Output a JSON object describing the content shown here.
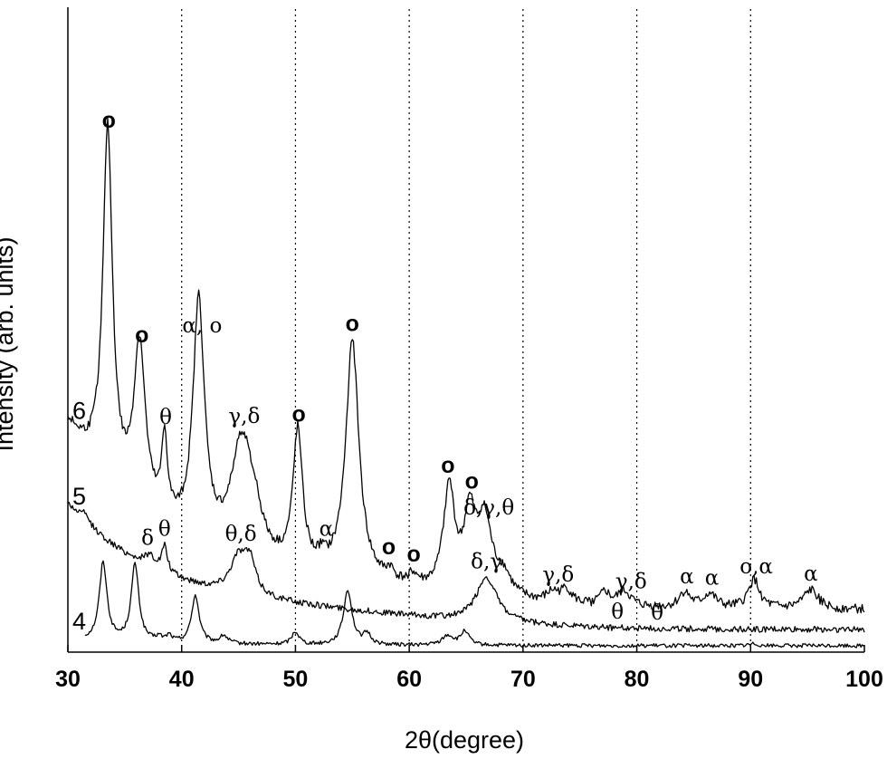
{
  "chart_data": {
    "type": "line",
    "xlabel": "2θ(degree)",
    "ylabel": "Intensity (arb. units)",
    "xlim": [
      30,
      100
    ],
    "x_ticks": [
      "30",
      "40",
      "50",
      "60",
      "70",
      "80",
      "90",
      "100"
    ],
    "vertical_grid": [
      40,
      50,
      60,
      70,
      80,
      90
    ],
    "y_ticks_shown": false,
    "series": [
      {
        "name": "4",
        "base": 1.0,
        "noise": 0.05,
        "slope": [
          1.0,
          0.0
        ],
        "peaks": [
          [
            33.1,
            12.2,
            0.4
          ],
          [
            35.9,
            12.0,
            0.4
          ],
          [
            38.0,
            0.7,
            0.3
          ],
          [
            38.9,
            1.0,
            0.3
          ],
          [
            41.2,
            7.4,
            0.4
          ],
          [
            43.7,
            1.2,
            0.4
          ],
          [
            50.0,
            2.0,
            0.4
          ],
          [
            54.6,
            8.5,
            0.45
          ],
          [
            56.3,
            1.6,
            0.4
          ],
          [
            63.4,
            1.5,
            0.6
          ],
          [
            64.9,
            2.2,
            0.4
          ],
          [
            90.3,
            0.3,
            0.5
          ]
        ]
      },
      {
        "name": "5",
        "base": 3.5,
        "noise": 0.08,
        "slope": [
          19.0,
          2.0
        ],
        "peaks": [
          [
            31.5,
            1.2,
            0.5
          ],
          [
            37.2,
            1.8,
            0.6
          ],
          [
            38.5,
            4.0,
            0.3
          ],
          [
            45.0,
            5.6,
            0.9
          ],
          [
            46.0,
            4.6,
            0.6
          ],
          [
            66.8,
            7.0,
            1.1
          ]
        ]
      },
      {
        "name": "6",
        "base": 6.5,
        "noise": 0.12,
        "slope": [
          28.0,
          2.5
        ],
        "peaks": [
          [
            33.5,
            54.0,
            0.5
          ],
          [
            36.3,
            25.0,
            0.6
          ],
          [
            38.5,
            12.0,
            0.3
          ],
          [
            41.5,
            37.0,
            0.6
          ],
          [
            45.3,
            18.0,
            1.1
          ],
          [
            46.5,
            4.0,
            0.7
          ],
          [
            50.2,
            21.0,
            0.5
          ],
          [
            52.3,
            1.5,
            0.4
          ],
          [
            55.0,
            37.0,
            0.7
          ],
          [
            58.3,
            1.6,
            0.4
          ],
          [
            60.3,
            1.6,
            0.5
          ],
          [
            63.5,
            16.0,
            0.6
          ],
          [
            65.3,
            11.0,
            0.6
          ],
          [
            66.6,
            11.5,
            0.8
          ],
          [
            68.3,
            3.0,
            0.8
          ],
          [
            72.6,
            1.5,
            0.6
          ],
          [
            73.8,
            2.2,
            0.6
          ],
          [
            77.2,
            2.0,
            0.5
          ],
          [
            78.9,
            2.4,
            0.7
          ],
          [
            84.2,
            2.4,
            0.6
          ],
          [
            86.4,
            2.2,
            0.7
          ],
          [
            90.3,
            4.5,
            0.6
          ],
          [
            95.3,
            3.0,
            0.8
          ]
        ]
      }
    ],
    "annotations": [
      {
        "text": "o",
        "x": 33.6,
        "series": "6",
        "style": "bold"
      },
      {
        "text": "o",
        "x": 36.5,
        "series": "6",
        "style": "bold"
      },
      {
        "text": "θ",
        "x": 38.6,
        "series": "6"
      },
      {
        "text": "α, o",
        "x": 41.8,
        "series": "6"
      },
      {
        "text": "γ,δ",
        "x": 45.5,
        "series": "6"
      },
      {
        "text": "o",
        "x": 50.3,
        "series": "6",
        "style": "bold"
      },
      {
        "text": "α",
        "x": 52.7,
        "series": "6"
      },
      {
        "text": "o",
        "x": 55.0,
        "series": "6",
        "style": "bold"
      },
      {
        "text": "o",
        "x": 58.2,
        "series": "6",
        "style": "bold"
      },
      {
        "text": "o",
        "x": 60.4,
        "series": "6",
        "style": "bold"
      },
      {
        "text": "o",
        "x": 63.4,
        "series": "6",
        "style": "bold"
      },
      {
        "text": "o",
        "x": 65.5,
        "series": "6",
        "style": "bold"
      },
      {
        "text": "δ,γ,θ",
        "x": 67.0,
        "series": "6"
      },
      {
        "text": "γ,δ",
        "x": 73.1,
        "series": "6"
      },
      {
        "text": "γ,δ",
        "x": 79.5,
        "series": "6"
      },
      {
        "text": "α",
        "x": 84.4,
        "series": "6"
      },
      {
        "text": "α",
        "x": 86.6,
        "series": "6"
      },
      {
        "text": "o,α",
        "x": 90.5,
        "series": "6"
      },
      {
        "text": "α",
        "x": 95.3,
        "series": "6"
      },
      {
        "text": "δ",
        "x": 37.0,
        "series": "5"
      },
      {
        "text": "θ",
        "x": 38.5,
        "series": "5"
      },
      {
        "text": "θ,δ",
        "x": 45.2,
        "series": "5"
      },
      {
        "text": "δ,γ",
        "x": 66.8,
        "series": "5"
      },
      {
        "text": "θ",
        "x": 78.3,
        "series": "5"
      },
      {
        "text": "θ",
        "x": 81.8,
        "series": "5"
      }
    ]
  }
}
